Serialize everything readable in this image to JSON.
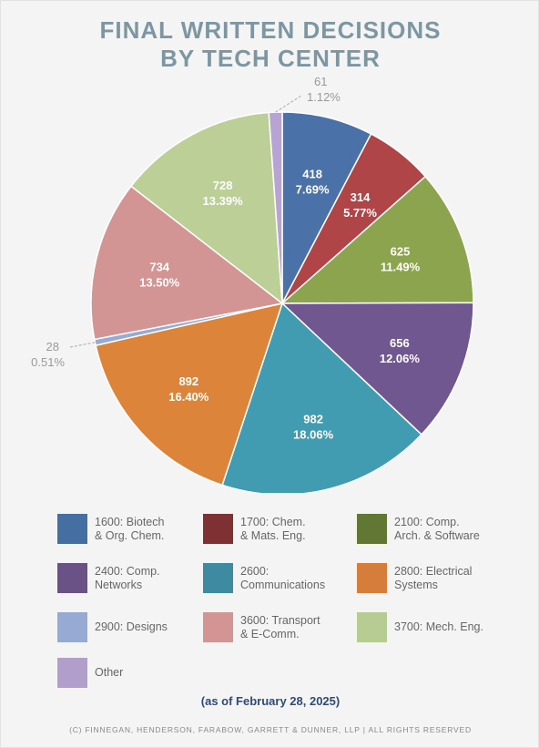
{
  "title_line1": "FINAL WRITTEN DECISIONS",
  "title_line2": "BY TECH CENTER",
  "as_of": "(as of February 28, 2025)",
  "footer": "(C) FINNEGAN, HENDERSON, FARABOW, GARRETT & DUNNER, LLP | ALL RIGHTS RESERVED",
  "legend": [
    {
      "label": "1600: Biotech\n& Org. Chem.",
      "color": "#456ea3"
    },
    {
      "label": "1700: Chem.\n& Mats. Eng.",
      "color": "#7e3033"
    },
    {
      "label": "2100: Comp.\nArch. & Software",
      "color": "#627734"
    },
    {
      "label": "2400: Comp.\nNetworks",
      "color": "#6a5287"
    },
    {
      "label": "2600:\nCommunications",
      "color": "#3d8aa1"
    },
    {
      "label": "2800: Electrical\nSystems",
      "color": "#d57e3c"
    },
    {
      "label": "2900: Designs",
      "color": "#97aad4"
    },
    {
      "label": "3600: Transport\n& E-Comm.",
      "color": "#d29593"
    },
    {
      "label": "3700: Mech. Eng.",
      "color": "#b7cc93"
    },
    {
      "label": "Other",
      "color": "#b19ecb"
    }
  ],
  "chart_data": {
    "type": "pie",
    "title": "FINAL WRITTEN DECISIONS BY TECH CENTER",
    "slices": [
      {
        "legend": "1600: Biotech & Org. Chem.",
        "value": 418,
        "percent": "7.69%",
        "color": "#4a72a8"
      },
      {
        "legend": "1700: Chem. & Mats. Eng.",
        "value": 314,
        "percent": "5.77%",
        "color": "#b04548"
      },
      {
        "legend": "2100: Comp. Arch. & Software",
        "value": 625,
        "percent": "11.49%",
        "color": "#8ba44d"
      },
      {
        "legend": "2400: Comp. Networks",
        "value": 656,
        "percent": "12.06%",
        "color": "#71578f"
      },
      {
        "legend": "2600: Communications",
        "value": 982,
        "percent": "18.06%",
        "color": "#419cb1"
      },
      {
        "legend": "2800: Electrical Systems",
        "value": 892,
        "percent": "16.40%",
        "color": "#dc853a"
      },
      {
        "legend": "2900: Designs",
        "value": 28,
        "percent": "0.51%",
        "color": "#97aad4",
        "label_outside": "left"
      },
      {
        "legend": "3600: Transport & E-Comm.",
        "value": 734,
        "percent": "13.50%",
        "color": "#d29593"
      },
      {
        "legend": "3700: Mech. Eng.",
        "value": 728,
        "percent": "13.39%",
        "color": "#bccf97"
      },
      {
        "legend": "Other",
        "value": 61,
        "percent": "1.12%",
        "color": "#b8a4d2",
        "label_outside": "top"
      }
    ],
    "start_angle_deg": 0,
    "direction": "clockwise",
    "legend_position": "bottom"
  }
}
